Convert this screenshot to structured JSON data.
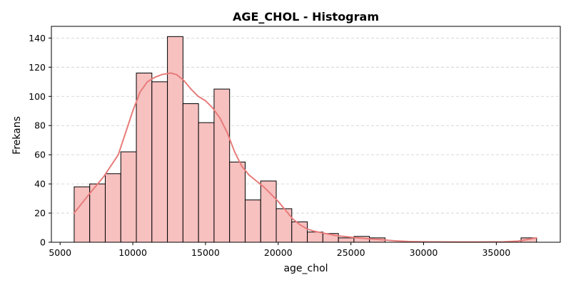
{
  "chart_data": {
    "type": "bar",
    "title": "AGE_CHOL - Histogram",
    "xlabel": "age_chol",
    "ylabel": "Frekans",
    "xlim": [
      4400,
      39400
    ],
    "ylim": [
      0,
      148
    ],
    "x_ticks": [
      5000,
      10000,
      15000,
      20000,
      25000,
      30000,
      35000
    ],
    "y_ticks": [
      0,
      20,
      40,
      60,
      80,
      100,
      120,
      140
    ],
    "grid": {
      "axis": "y",
      "style": "dashed"
    },
    "bins": [
      {
        "start": 5967,
        "end": 7036,
        "count": 38
      },
      {
        "start": 7036,
        "end": 8105,
        "count": 40
      },
      {
        "start": 8105,
        "end": 9174,
        "count": 47
      },
      {
        "start": 9174,
        "end": 10243,
        "count": 62
      },
      {
        "start": 10243,
        "end": 11312,
        "count": 116
      },
      {
        "start": 11312,
        "end": 12381,
        "count": 110
      },
      {
        "start": 12381,
        "end": 13450,
        "count": 141
      },
      {
        "start": 13450,
        "end": 14519,
        "count": 95
      },
      {
        "start": 14519,
        "end": 15588,
        "count": 82
      },
      {
        "start": 15588,
        "end": 16657,
        "count": 105
      },
      {
        "start": 16657,
        "end": 17726,
        "count": 55
      },
      {
        "start": 17726,
        "end": 18795,
        "count": 29
      },
      {
        "start": 18795,
        "end": 19864,
        "count": 42
      },
      {
        "start": 19864,
        "end": 20933,
        "count": 23
      },
      {
        "start": 20933,
        "end": 22002,
        "count": 14
      },
      {
        "start": 22002,
        "end": 23071,
        "count": 7
      },
      {
        "start": 23071,
        "end": 24140,
        "count": 6
      },
      {
        "start": 24140,
        "end": 25209,
        "count": 3
      },
      {
        "start": 25209,
        "end": 26278,
        "count": 4
      },
      {
        "start": 26278,
        "end": 27347,
        "count": 3
      },
      {
        "start": 36700,
        "end": 37769,
        "count": 3
      }
    ],
    "kde": [
      [
        5967,
        20
      ],
      [
        7000,
        33
      ],
      [
        8000,
        45
      ],
      [
        9000,
        60
      ],
      [
        9500,
        75
      ],
      [
        10000,
        90
      ],
      [
        10500,
        103
      ],
      [
        11000,
        110
      ],
      [
        11500,
        113
      ],
      [
        12000,
        115
      ],
      [
        12600,
        116
      ],
      [
        13000,
        115
      ],
      [
        13500,
        111
      ],
      [
        14000,
        105
      ],
      [
        14500,
        100
      ],
      [
        15000,
        97
      ],
      [
        15500,
        92
      ],
      [
        16000,
        85
      ],
      [
        16500,
        75
      ],
      [
        17000,
        62
      ],
      [
        17500,
        52
      ],
      [
        18000,
        46
      ],
      [
        18500,
        42
      ],
      [
        19000,
        38
      ],
      [
        19500,
        33
      ],
      [
        20000,
        28
      ],
      [
        20500,
        22
      ],
      [
        21000,
        16
      ],
      [
        21500,
        12
      ],
      [
        22000,
        9
      ],
      [
        22500,
        7.5
      ],
      [
        23000,
        6.5
      ],
      [
        23500,
        5.5
      ],
      [
        24000,
        4.5
      ],
      [
        25000,
        3.5
      ],
      [
        26000,
        2.5
      ],
      [
        27000,
        1.8
      ],
      [
        28000,
        1
      ],
      [
        29000,
        0.5
      ],
      [
        30000,
        0.3
      ],
      [
        32000,
        0.2
      ],
      [
        34000,
        0.2
      ],
      [
        35500,
        0.3
      ],
      [
        36500,
        0.8
      ],
      [
        37200,
        2
      ],
      [
        37769,
        3
      ]
    ],
    "colors": {
      "bar_fill": "#f7c1c0",
      "bar_edge": "#000000",
      "kde_line": "#e77c7a",
      "grid": "#cccccc",
      "axis": "#000000"
    }
  }
}
